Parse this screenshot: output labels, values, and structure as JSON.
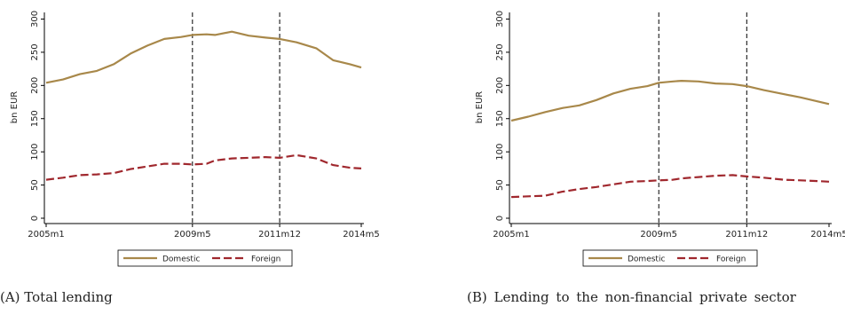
{
  "captions": {
    "a": "(A) Total lending",
    "b": "(B) Lending to the non-financial private sector"
  },
  "colors": {
    "domestic": "#a8884a",
    "foreign": "#a0282e",
    "axis": "#000000"
  },
  "chart_data": [
    {
      "type": "line",
      "panel": "A",
      "ylabel": "bn EUR",
      "ylim": [
        0,
        310
      ],
      "yticks": [
        0,
        50,
        100,
        150,
        200,
        250,
        300
      ],
      "x": [
        "2005m1",
        "2005m7",
        "2006m1",
        "2006m7",
        "2007m1",
        "2007m7",
        "2008m1",
        "2008m7",
        "2009m1",
        "2009m5",
        "2009m10",
        "2010m1",
        "2010m7",
        "2011m1",
        "2011m7",
        "2011m12",
        "2012m6",
        "2013m1",
        "2013m7",
        "2014m1",
        "2014m5"
      ],
      "xticks": [
        "2005m1",
        "2009m5",
        "2011m12",
        "2014m5"
      ],
      "vlines": [
        "2009m5",
        "2011m12"
      ],
      "grid": false,
      "legend": "bottom-center",
      "series": [
        {
          "name": "Domestic",
          "style": "solid",
          "values": [
            204,
            209,
            217,
            222,
            232,
            248,
            260,
            270,
            273,
            276,
            277,
            276,
            281,
            275,
            272,
            270,
            265,
            256,
            238,
            232,
            227
          ]
        },
        {
          "name": "Foreign",
          "style": "dashed",
          "values": [
            58,
            61,
            65,
            66,
            68,
            74,
            78,
            82,
            82,
            81,
            82,
            87,
            90,
            91,
            92,
            91,
            95,
            90,
            80,
            76,
            75
          ]
        }
      ]
    },
    {
      "type": "line",
      "panel": "B",
      "ylabel": "bn EUR",
      "ylim": [
        0,
        310
      ],
      "yticks": [
        0,
        50,
        100,
        150,
        200,
        250,
        300
      ],
      "x": [
        "2005m1",
        "2005m7",
        "2006m1",
        "2006m7",
        "2007m1",
        "2007m7",
        "2008m1",
        "2008m7",
        "2009m1",
        "2009m5",
        "2009m10",
        "2010m1",
        "2010m7",
        "2011m1",
        "2011m7",
        "2011m12",
        "2012m6",
        "2013m1",
        "2013m7",
        "2014m1",
        "2014m5"
      ],
      "xticks": [
        "2005m1",
        "2009m5",
        "2011m12",
        "2014m5"
      ],
      "vlines": [
        "2009m5",
        "2011m12"
      ],
      "grid": false,
      "legend": "bottom-center",
      "series": [
        {
          "name": "Domestic",
          "style": "solid",
          "values": [
            147,
            153,
            160,
            166,
            170,
            178,
            188,
            195,
            199,
            204,
            206,
            207,
            206,
            203,
            202,
            199,
            193,
            187,
            182,
            176,
            172
          ]
        },
        {
          "name": "Foreign",
          "style": "dashed",
          "values": [
            32,
            33,
            34,
            40,
            44,
            47,
            51,
            55,
            56,
            57,
            58,
            60,
            62,
            64,
            65,
            63,
            61,
            58,
            57,
            56,
            55
          ]
        }
      ]
    }
  ]
}
